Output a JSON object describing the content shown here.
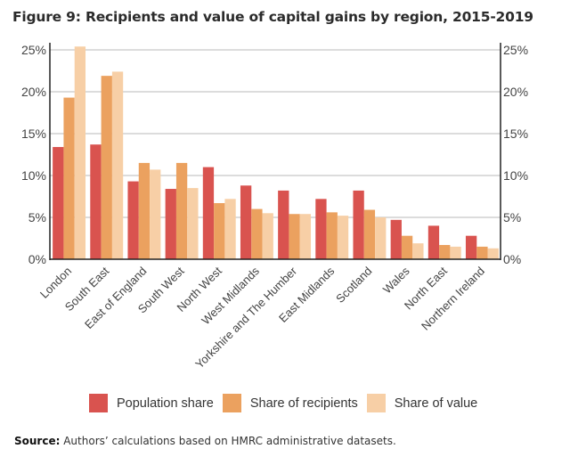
{
  "chart_data": {
    "type": "bar",
    "title": "Figure 9: Recipients and value of capital gains by region, 2015-2019",
    "xlabel": "",
    "ylabel": "",
    "ylim": [
      0,
      25
    ],
    "yticks": [
      "0%",
      "5%",
      "10%",
      "15%",
      "20%",
      "25%"
    ],
    "ytick_values": [
      0,
      5,
      10,
      15,
      20,
      25
    ],
    "secondary_axis": true,
    "grid": true,
    "legend_position": "bottom",
    "categories": [
      "London",
      "South East",
      "East of England",
      "South West",
      "North West",
      "West Midlands",
      "Yorkshire and The Humber",
      "East Midlands",
      "Scotland",
      "Wales",
      "North East",
      "Northern Ireland"
    ],
    "series": [
      {
        "name": "Population share",
        "color": "#d9534f",
        "values": [
          13.4,
          13.7,
          9.3,
          8.4,
          11.0,
          8.8,
          8.2,
          7.2,
          8.2,
          4.7,
          4.0,
          2.8
        ]
      },
      {
        "name": "Share of recipients",
        "color": "#eba15f",
        "values": [
          19.3,
          21.9,
          11.5,
          11.5,
          6.7,
          6.0,
          5.4,
          5.6,
          5.9,
          2.8,
          1.7,
          1.5
        ]
      },
      {
        "name": "Share of value",
        "color": "#f7cfa6",
        "values": [
          25.4,
          22.4,
          10.7,
          8.5,
          7.2,
          5.5,
          5.4,
          5.2,
          5.0,
          1.9,
          1.5,
          1.3
        ]
      }
    ]
  },
  "source": {
    "label": "Source:",
    "text": " Authors’ calculations based on HMRC administrative datasets."
  }
}
